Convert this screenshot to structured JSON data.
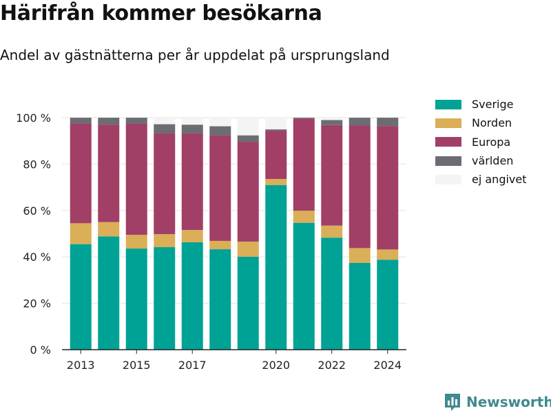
{
  "header": {
    "title": "Härifrån kommer besökarna",
    "subtitle": "Andel av gästnätterna per år uppdelat på ursprungsland"
  },
  "brand": {
    "name": "Newsworthy",
    "icon": "newsworthy-logo-icon",
    "color": "#3f8a8e"
  },
  "chart_data": {
    "type": "bar",
    "stacked": true,
    "x": [
      2013,
      2014,
      2015,
      2016,
      2017,
      2018,
      2019,
      2020,
      2021,
      2022,
      2023,
      2024
    ],
    "x_tick_labels": [
      "2013",
      "2015",
      "2017",
      "2020",
      "2022",
      "2024"
    ],
    "y_tick_labels": [
      "0 %",
      "20 %",
      "40 %",
      "60 %",
      "80 %",
      "100 %"
    ],
    "ylim": [
      0,
      100
    ],
    "grid": true,
    "legend_position": "right",
    "series": [
      {
        "name": "Sverige",
        "color": "#00a296",
        "values": [
          45.5,
          48.8,
          43.6,
          44.2,
          46.3,
          43.3,
          40.1,
          71.0,
          54.7,
          48.3,
          37.4,
          38.8
        ]
      },
      {
        "name": "Norden",
        "color": "#dbae58",
        "values": [
          9.0,
          6.2,
          5.9,
          5.6,
          5.3,
          3.6,
          6.5,
          2.6,
          5.2,
          5.2,
          6.4,
          4.4
        ]
      },
      {
        "name": "Europa",
        "color": "#a13f67",
        "values": [
          43.0,
          42.0,
          48.0,
          43.5,
          41.6,
          45.5,
          43.0,
          20.8,
          39.7,
          43.3,
          52.8,
          53.2
        ]
      },
      {
        "name": "världen",
        "color": "#6c6c73",
        "values": [
          2.5,
          3.0,
          2.5,
          3.9,
          3.8,
          3.9,
          2.8,
          0.6,
          0.4,
          2.2,
          3.4,
          3.6
        ]
      },
      {
        "name": "ej angivet",
        "color": "#f4f4f4",
        "values": [
          0.0,
          0.0,
          0.0,
          2.8,
          3.0,
          3.7,
          7.6,
          5.0,
          0.0,
          1.0,
          0.0,
          0.0
        ]
      }
    ]
  }
}
